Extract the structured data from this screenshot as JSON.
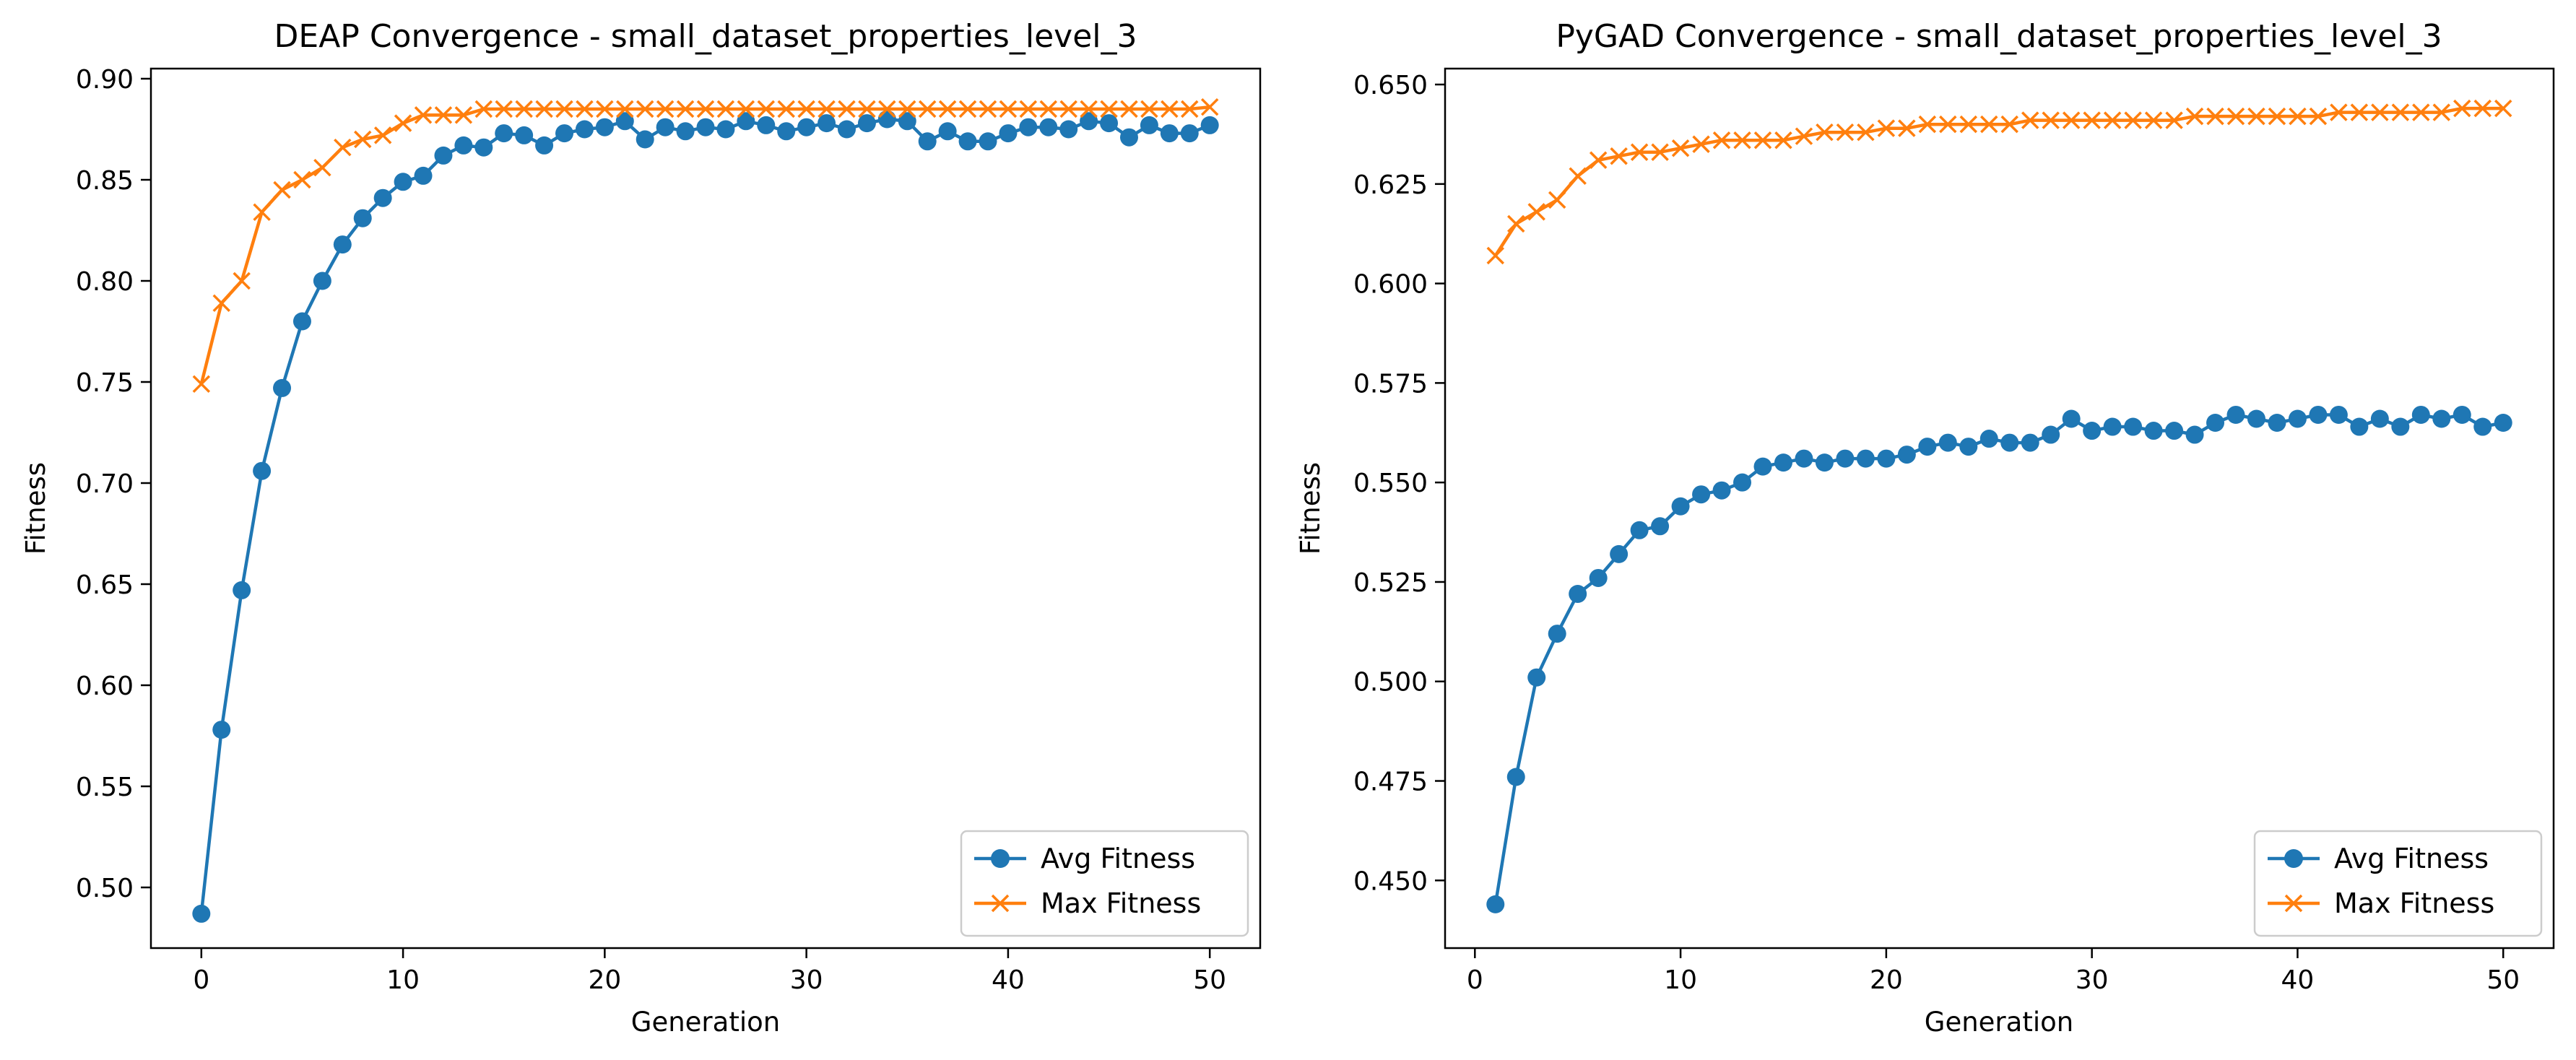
{
  "colors": {
    "avg": "#1f77b4",
    "max": "#ff7f0e"
  },
  "chart_data": [
    {
      "type": "line",
      "title": "DEAP Convergence - small_dataset_properties_level_3",
      "xlabel": "Generation",
      "ylabel": "Fitness",
      "xlim": [
        -2.5,
        52.5
      ],
      "ylim": [
        0.47,
        0.905
      ],
      "xticks": [
        0,
        10,
        20,
        30,
        40,
        50
      ],
      "yticks": [
        0.5,
        0.55,
        0.6,
        0.65,
        0.7,
        0.75,
        0.8,
        0.85,
        0.9
      ],
      "ytick_decimals": 2,
      "legend": "lower-right",
      "grid": false,
      "x": [
        0,
        1,
        2,
        3,
        4,
        5,
        6,
        7,
        8,
        9,
        10,
        11,
        12,
        13,
        14,
        15,
        16,
        17,
        18,
        19,
        20,
        21,
        22,
        23,
        24,
        25,
        26,
        27,
        28,
        29,
        30,
        31,
        32,
        33,
        34,
        35,
        36,
        37,
        38,
        39,
        40,
        41,
        42,
        43,
        44,
        45,
        46,
        47,
        48,
        49,
        50
      ],
      "series": [
        {
          "name": "Avg Fitness",
          "marker": "o",
          "values": [
            0.487,
            0.578,
            0.647,
            0.706,
            0.747,
            0.78,
            0.8,
            0.818,
            0.831,
            0.841,
            0.849,
            0.852,
            0.862,
            0.867,
            0.866,
            0.873,
            0.872,
            0.867,
            0.873,
            0.875,
            0.876,
            0.879,
            0.87,
            0.876,
            0.874,
            0.876,
            0.875,
            0.879,
            0.877,
            0.874,
            0.876,
            0.878,
            0.875,
            0.878,
            0.88,
            0.879,
            0.869,
            0.874,
            0.869,
            0.869,
            0.873,
            0.876,
            0.876,
            0.875,
            0.879,
            0.878,
            0.871,
            0.877,
            0.873,
            0.873,
            0.877
          ]
        },
        {
          "name": "Max Fitness",
          "marker": "x",
          "values": [
            0.749,
            0.789,
            0.8,
            0.834,
            0.845,
            0.85,
            0.856,
            0.866,
            0.87,
            0.872,
            0.878,
            0.882,
            0.882,
            0.882,
            0.885,
            0.885,
            0.885,
            0.885,
            0.885,
            0.885,
            0.885,
            0.885,
            0.885,
            0.885,
            0.885,
            0.885,
            0.885,
            0.885,
            0.885,
            0.885,
            0.885,
            0.885,
            0.885,
            0.885,
            0.885,
            0.885,
            0.885,
            0.885,
            0.885,
            0.885,
            0.885,
            0.885,
            0.885,
            0.885,
            0.885,
            0.885,
            0.885,
            0.885,
            0.885,
            0.885,
            0.886
          ]
        }
      ]
    },
    {
      "type": "line",
      "title": "PyGAD Convergence - small_dataset_properties_level_3",
      "xlabel": "Generation",
      "ylabel": "Fitness",
      "xlim": [
        -1.45,
        52.45
      ],
      "ylim": [
        0.433,
        0.654
      ],
      "xticks": [
        0,
        10,
        20,
        30,
        40,
        50
      ],
      "yticks": [
        0.45,
        0.475,
        0.5,
        0.525,
        0.55,
        0.575,
        0.6,
        0.625,
        0.65
      ],
      "ytick_decimals": 3,
      "legend": "lower-right",
      "grid": false,
      "x": [
        1,
        2,
        3,
        4,
        5,
        6,
        7,
        8,
        9,
        10,
        11,
        12,
        13,
        14,
        15,
        16,
        17,
        18,
        19,
        20,
        21,
        22,
        23,
        24,
        25,
        26,
        27,
        28,
        29,
        30,
        31,
        32,
        33,
        34,
        35,
        36,
        37,
        38,
        39,
        40,
        41,
        42,
        43,
        44,
        45,
        46,
        47,
        48,
        49,
        50
      ],
      "series": [
        {
          "name": "Avg Fitness",
          "marker": "o",
          "values": [
            0.444,
            0.476,
            0.501,
            0.512,
            0.522,
            0.526,
            0.532,
            0.538,
            0.539,
            0.544,
            0.547,
            0.548,
            0.55,
            0.554,
            0.555,
            0.556,
            0.555,
            0.556,
            0.556,
            0.556,
            0.557,
            0.559,
            0.56,
            0.559,
            0.561,
            0.56,
            0.56,
            0.562,
            0.566,
            0.563,
            0.564,
            0.564,
            0.563,
            0.563,
            0.562,
            0.565,
            0.567,
            0.566,
            0.565,
            0.566,
            0.567,
            0.567,
            0.564,
            0.566,
            0.564,
            0.567,
            0.566,
            0.567,
            0.564,
            0.565
          ]
        },
        {
          "name": "Max Fitness",
          "marker": "x",
          "values": [
            0.607,
            0.615,
            0.618,
            0.621,
            0.627,
            0.631,
            0.632,
            0.633,
            0.633,
            0.634,
            0.635,
            0.636,
            0.636,
            0.636,
            0.636,
            0.637,
            0.638,
            0.638,
            0.638,
            0.639,
            0.639,
            0.64,
            0.64,
            0.64,
            0.64,
            0.64,
            0.641,
            0.641,
            0.641,
            0.641,
            0.641,
            0.641,
            0.641,
            0.641,
            0.642,
            0.642,
            0.642,
            0.642,
            0.642,
            0.642,
            0.642,
            0.643,
            0.643,
            0.643,
            0.643,
            0.643,
            0.643,
            0.644,
            0.644,
            0.644
          ]
        }
      ]
    }
  ]
}
